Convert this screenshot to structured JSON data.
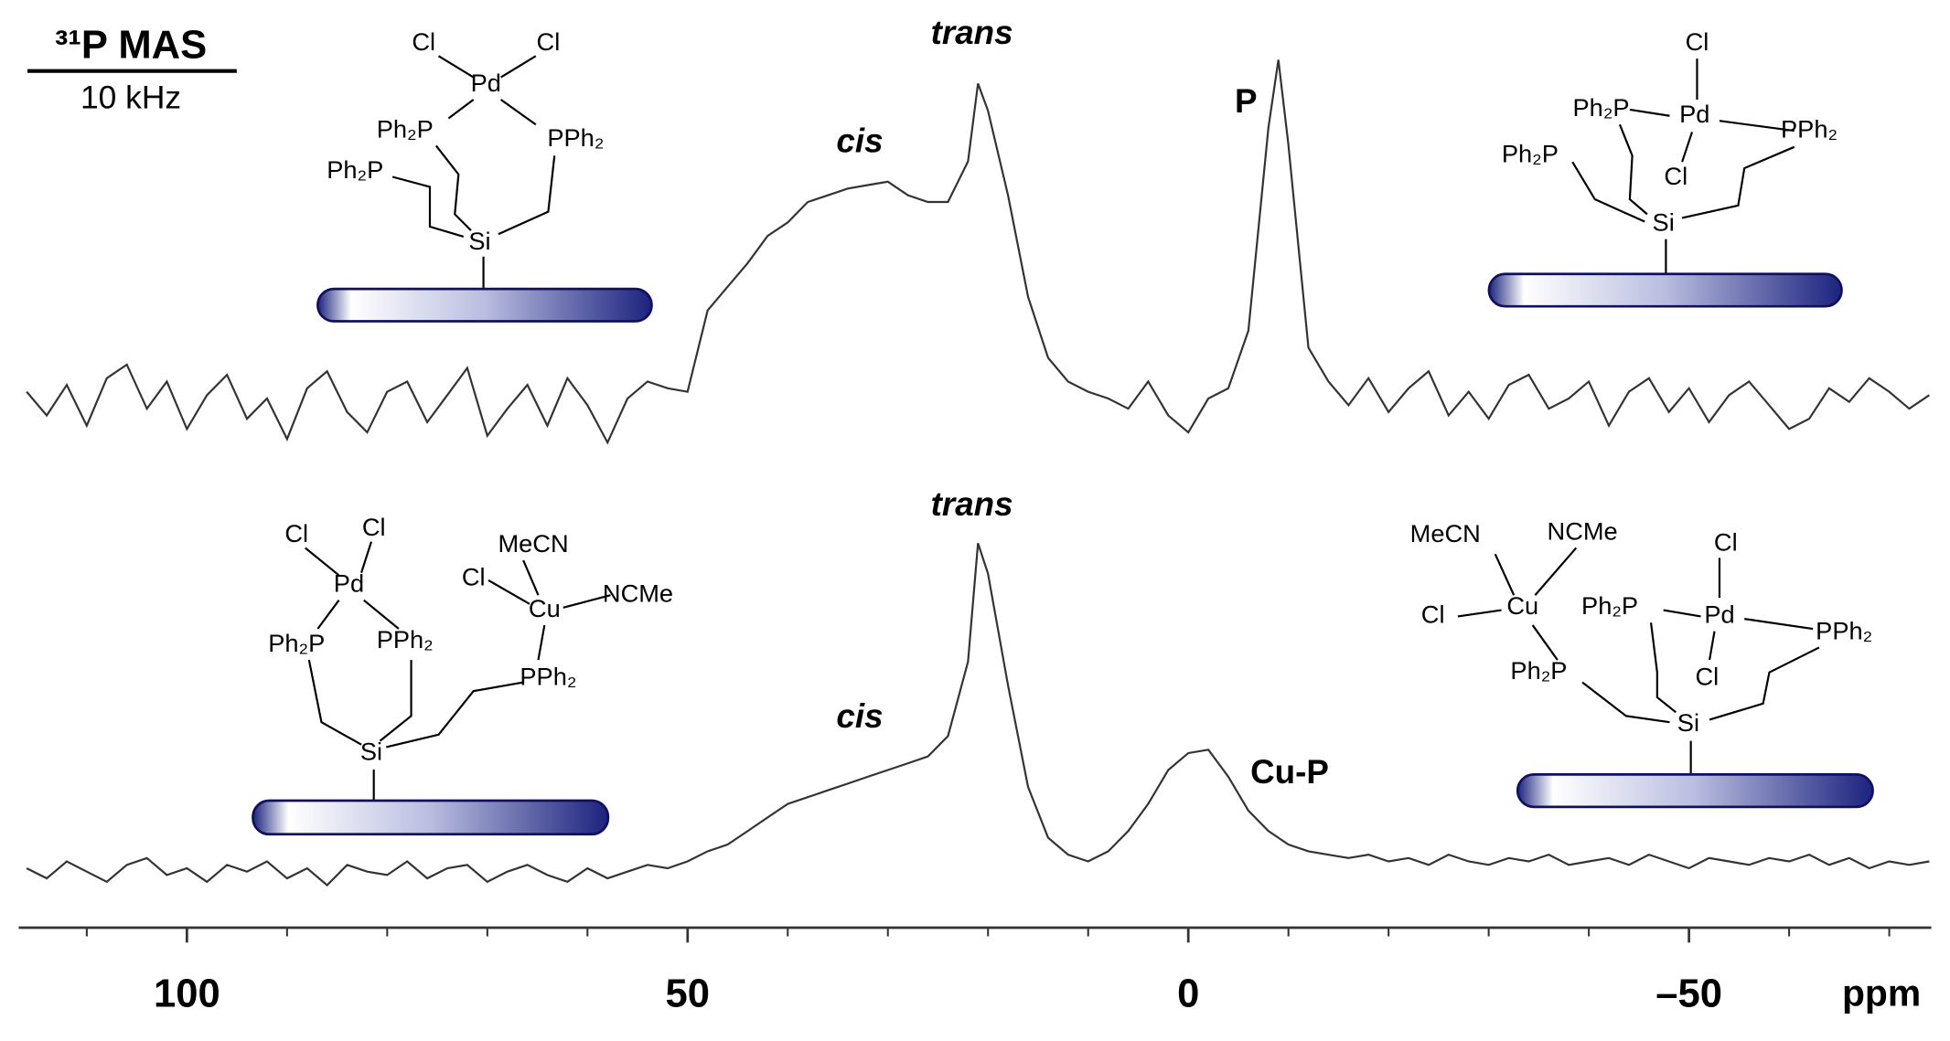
{
  "chart_data": {
    "type": "line",
    "title": "³¹P MAS",
    "subtitle": "10 kHz",
    "x_label": "ppm",
    "xlim": [
      116.8,
      -74.2
    ],
    "xticks": [
      100,
      50,
      0,
      {
        "value": -50,
        "label": "–50"
      }
    ],
    "xminorticks": [
      110,
      90,
      80,
      70,
      60,
      40,
      30,
      20,
      10,
      -10,
      -20,
      -30,
      -40,
      -60,
      -70
    ],
    "x": [
      116,
      114,
      112,
      110,
      108,
      106,
      104,
      102,
      100,
      98,
      96,
      94,
      92,
      90,
      88,
      86,
      84,
      82,
      80,
      78,
      76,
      74,
      72,
      70,
      68,
      66,
      64,
      62,
      60,
      58,
      56,
      54,
      52,
      50,
      48,
      46,
      44,
      42,
      40,
      38,
      36,
      34,
      32,
      30,
      28,
      26,
      24,
      22,
      21,
      20,
      18,
      16,
      14,
      12,
      10,
      8,
      6,
      4,
      2,
      0,
      -2,
      -4,
      -6,
      -8,
      -9,
      -10,
      -12,
      -14,
      -16,
      -18,
      -20,
      -22,
      -24,
      -26,
      -28,
      -30,
      -32,
      -34,
      -36,
      -38,
      -40,
      -42,
      -44,
      -46,
      -48,
      -50,
      -52,
      -54,
      -56,
      -58,
      -60,
      -62,
      -64,
      -66,
      -68,
      -70,
      -72,
      -74
    ],
    "series": [
      {
        "color": "#333333",
        "values": [
          2,
          -5,
          4,
          -8,
          6,
          10,
          -3,
          5,
          -9,
          1,
          7,
          -6,
          0,
          -12,
          3,
          8,
          -4,
          -10,
          2,
          5,
          -7,
          1,
          9,
          -11,
          -3,
          4,
          -8,
          6,
          -2,
          -13,
          0,
          5,
          3,
          2,
          26,
          33,
          40,
          48,
          52,
          58,
          60,
          62,
          63,
          64,
          60,
          58,
          58,
          70,
          93,
          85,
          60,
          30,
          12,
          5,
          2,
          0,
          -3,
          5,
          -5,
          -10,
          0,
          3,
          20,
          80,
          100,
          75,
          15,
          5,
          -2,
          6,
          -4,
          3,
          8,
          -5,
          2,
          -6,
          4,
          7,
          -3,
          0,
          5,
          -8,
          2,
          6,
          -4,
          3,
          -7,
          1,
          5,
          -2,
          -9,
          -6,
          3,
          -1,
          6,
          2,
          -3,
          1
        ]
      },
      {
        "color": "#333333",
        "values": [
          1,
          -2,
          3,
          0,
          -3,
          2,
          4,
          -1,
          1,
          -3,
          2,
          0,
          3,
          -2,
          1,
          -4,
          2,
          0,
          -1,
          3,
          -2,
          1,
          2,
          -3,
          0,
          2,
          -1,
          -3,
          1,
          -2,
          0,
          2,
          1,
          3,
          6,
          8,
          12,
          16,
          20,
          22,
          24,
          26,
          28,
          30,
          32,
          34,
          40,
          62,
          97,
          88,
          55,
          25,
          10,
          5,
          3,
          6,
          12,
          20,
          30,
          35,
          36,
          28,
          18,
          12,
          10,
          8,
          6,
          5,
          4,
          5,
          3,
          4,
          2,
          5,
          3,
          2,
          4,
          3,
          5,
          2,
          3,
          4,
          2,
          5,
          3,
          1,
          4,
          3,
          2,
          4,
          3,
          5,
          2,
          4,
          1,
          3,
          2,
          3
        ]
      }
    ],
    "annotations": [
      "trans",
      "cis",
      "P",
      "trans",
      "cis",
      "Cu-P"
    ]
  },
  "structures": [
    {
      "labels": [
        "Cl",
        "Cl",
        "Pd",
        "Ph₂P",
        "PPh₂",
        "Ph₂P",
        "Si"
      ]
    },
    {
      "labels": [
        "Cl",
        "Ph₂P",
        "Pd",
        "PPh₂",
        "Ph₂P",
        "Cl",
        "Si"
      ]
    },
    {
      "labels": [
        "Cl",
        "Cl",
        "Pd",
        "MeCN",
        "Cl",
        "Cu",
        "NCMe",
        "Ph₂P",
        "PPh₂",
        "PPh₂",
        "Si"
      ]
    },
    {
      "labels": [
        "MeCN",
        "NCMe",
        "Cl",
        "Cu",
        "Cl",
        "Ph₂P",
        "Pd",
        "PPh₂",
        "Cl",
        "Ph₂P",
        "Si"
      ]
    }
  ]
}
